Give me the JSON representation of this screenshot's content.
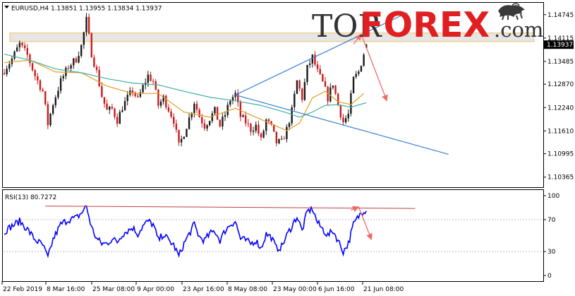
{
  "header": {
    "symbol_line": "EURUSD,H4  1.13851 1.13955 1.13834 1.13937",
    "logo_left": "TOR",
    "logo_main": "FOREX",
    "logo_suffix": ".com"
  },
  "rsi_header": "RSI(13) 80.7272",
  "colors": {
    "bull_candle": "#1a1a1a",
    "bear_candle": "#cc1a1a",
    "ma_fast": "#e0a020",
    "ma_slow": "#40b0a0",
    "trendline": "#3a7fd8",
    "forecast_arrow": "#f06a6a",
    "resistance_zone": "#e6e6e6",
    "resistance_border": "#f0c060",
    "rsi_line": "#0000ff",
    "rsi_resistance": "#c04040",
    "price_badge": "#000000",
    "logo_red": "#e02020",
    "logo_dark": "#333333"
  },
  "chart_data": [
    {
      "type": "candlestick",
      "symbol": "EURUSD",
      "timeframe": "H4",
      "last_bar": {
        "open": 1.13851,
        "high": 1.13955,
        "low": 1.13834,
        "close": 1.13937
      },
      "current_price_label": "1.13937",
      "ylim": [
        1.1015,
        1.1495
      ],
      "y_tick_labels": [
        "1.14745",
        "1.14115",
        "1.13485",
        "1.12870",
        "1.12240",
        "1.11610",
        "1.10995",
        "1.10365"
      ],
      "y_tick_values": [
        1.14745,
        1.14115,
        1.13485,
        1.1287,
        1.1224,
        1.1161,
        1.10995,
        1.10365
      ],
      "x_tick_labels": [
        "22 Feb 2019",
        "8 Mar 16:00",
        "25 Mar 08:00",
        "9 Apr 00:00",
        "23 Apr 16:00",
        "8 May 08:00",
        "23 May 00:00",
        "6 Jun 16:00",
        "21 Jun 08:00"
      ],
      "close_path": [
        [
          0,
          1.1325
        ],
        [
          3,
          1.1355
        ],
        [
          6,
          1.1395
        ],
        [
          9,
          1.1365
        ],
        [
          12,
          1.131
        ],
        [
          15,
          1.1268
        ],
        [
          17,
          1.118
        ],
        [
          19,
          1.1235
        ],
        [
          22,
          1.1295
        ],
        [
          25,
          1.1335
        ],
        [
          28,
          1.1355
        ],
        [
          30,
          1.139
        ],
        [
          32,
          1.146
        ],
        [
          34,
          1.137
        ],
        [
          36,
          1.132
        ],
        [
          38,
          1.1255
        ],
        [
          40,
          1.1215
        ],
        [
          42,
          1.122
        ],
        [
          44,
          1.119
        ],
        [
          46,
          1.1225
        ],
        [
          48,
          1.125
        ],
        [
          50,
          1.127
        ],
        [
          52,
          1.1245
        ],
        [
          54,
          1.128
        ],
        [
          56,
          1.131
        ],
        [
          58,
          1.1295
        ],
        [
          60,
          1.123
        ],
        [
          62,
          1.125
        ],
        [
          64,
          1.122
        ],
        [
          66,
          1.119
        ],
        [
          68,
          1.112
        ],
        [
          70,
          1.1155
        ],
        [
          72,
          1.1195
        ],
        [
          74,
          1.124
        ],
        [
          76,
          1.12
        ],
        [
          78,
          1.1175
        ],
        [
          80,
          1.1195
        ],
        [
          82,
          1.1215
        ],
        [
          84,
          1.1175
        ],
        [
          86,
          1.1205
        ],
        [
          88,
          1.1245
        ],
        [
          90,
          1.126
        ],
        [
          92,
          1.12
        ],
        [
          94,
          1.1185
        ],
        [
          96,
          1.1165
        ],
        [
          98,
          1.1175
        ],
        [
          100,
          1.1135
        ],
        [
          102,
          1.119
        ],
        [
          104,
          1.117
        ],
        [
          106,
          1.113
        ],
        [
          108,
          1.113
        ],
        [
          110,
          1.1165
        ],
        [
          112,
          1.1215
        ],
        [
          114,
          1.1295
        ],
        [
          116,
          1.125
        ],
        [
          118,
          1.133
        ],
        [
          120,
          1.136
        ],
        [
          122,
          1.132
        ],
        [
          124,
          1.129
        ],
        [
          126,
          1.125
        ],
        [
          128,
          1.129
        ],
        [
          130,
          1.123
        ],
        [
          132,
          1.1185
        ],
        [
          134,
          1.1205
        ],
        [
          136,
          1.13
        ],
        [
          138,
          1.132
        ],
        [
          140,
          1.137
        ],
        [
          141,
          1.13937
        ]
      ],
      "moving_averages": [
        {
          "name": "MA fast",
          "color": "#e0a020",
          "values": [
            [
              0,
              1.1345
            ],
            [
              10,
              1.1352
            ],
            [
              20,
              1.132
            ],
            [
              30,
              1.1318
            ],
            [
              40,
              1.1282
            ],
            [
              50,
              1.1262
            ],
            [
              60,
              1.1262
            ],
            [
              70,
              1.1212
            ],
            [
              80,
              1.1198
            ],
            [
              90,
              1.1222
            ],
            [
              100,
              1.1192
            ],
            [
              110,
              1.1162
            ],
            [
              115,
              1.1182
            ],
            [
              120,
              1.125
            ],
            [
              125,
              1.1268
            ],
            [
              130,
              1.124
            ],
            [
              135,
              1.1232
            ],
            [
              140,
              1.1262
            ]
          ]
        },
        {
          "name": "MA slow",
          "color": "#40b0a0",
          "values": [
            [
              0,
              1.1368
            ],
            [
              10,
              1.1352
            ],
            [
              20,
              1.1328
            ],
            [
              30,
              1.1318
            ],
            [
              40,
              1.1302
            ],
            [
              50,
              1.129
            ],
            [
              60,
              1.1285
            ],
            [
              70,
              1.1268
            ],
            [
              80,
              1.1252
            ],
            [
              90,
              1.1242
            ],
            [
              100,
              1.123
            ],
            [
              110,
              1.121
            ],
            [
              115,
              1.1198
            ],
            [
              120,
              1.1212
            ],
            [
              125,
              1.123
            ],
            [
              130,
              1.1232
            ],
            [
              135,
              1.1225
            ],
            [
              141,
              1.1237
            ]
          ]
        }
      ],
      "resistance_zone": [
        1.1402,
        1.1425
      ],
      "trendlines": [
        {
          "name": "upper channel line",
          "from": [
            90,
            1.1258
          ],
          "to": [
            157,
            1.148
          ]
        },
        {
          "name": "lower channel line",
          "from": [
            90,
            1.1258
          ],
          "to": [
            173,
            1.1098
          ]
        }
      ],
      "forecast_arrows": [
        {
          "from": [
            136,
            1.1395
          ],
          "to": [
            139,
            1.1422
          ]
        },
        {
          "from": [
            139,
            1.1422
          ],
          "to": [
            149,
            1.1242
          ]
        }
      ]
    },
    {
      "type": "line",
      "name": "RSI(13)",
      "current_value": 80.7272,
      "ylim": [
        0,
        100
      ],
      "y_tick_labels": [
        "100",
        "70",
        "30",
        "0"
      ],
      "y_tick_values": [
        100,
        70,
        30,
        0
      ],
      "levels": [
        70,
        30
      ],
      "series": [
        {
          "values": [
            [
              0,
              55
            ],
            [
              3,
              62
            ],
            [
              6,
              68
            ],
            [
              9,
              58
            ],
            [
              12,
              45
            ],
            [
              15,
              38
            ],
            [
              17,
              22
            ],
            [
              19,
              45
            ],
            [
              22,
              64
            ],
            [
              25,
              70
            ],
            [
              28,
              72
            ],
            [
              30,
              78
            ],
            [
              32,
              87
            ],
            [
              34,
              60
            ],
            [
              36,
              46
            ],
            [
              38,
              40
            ],
            [
              40,
              40
            ],
            [
              42,
              46
            ],
            [
              44,
              42
            ],
            [
              46,
              52
            ],
            [
              48,
              56
            ],
            [
              50,
              60
            ],
            [
              52,
              52
            ],
            [
              54,
              62
            ],
            [
              56,
              68
            ],
            [
              58,
              64
            ],
            [
              60,
              44
            ],
            [
              62,
              52
            ],
            [
              64,
              44
            ],
            [
              66,
              38
            ],
            [
              68,
              24
            ],
            [
              70,
              40
            ],
            [
              72,
              52
            ],
            [
              74,
              64
            ],
            [
              76,
              48
            ],
            [
              78,
              44
            ],
            [
              80,
              52
            ],
            [
              82,
              56
            ],
            [
              84,
              44
            ],
            [
              86,
              56
            ],
            [
              88,
              64
            ],
            [
              90,
              68
            ],
            [
              92,
              46
            ],
            [
              94,
              44
            ],
            [
              96,
              40
            ],
            [
              98,
              44
            ],
            [
              100,
              34
            ],
            [
              102,
              52
            ],
            [
              104,
              48
            ],
            [
              106,
              34
            ],
            [
              108,
              36
            ],
            [
              110,
              50
            ],
            [
              112,
              62
            ],
            [
              114,
              74
            ],
            [
              116,
              56
            ],
            [
              118,
              80
            ],
            [
              120,
              84
            ],
            [
              122,
              66
            ],
            [
              124,
              58
            ],
            [
              126,
              50
            ],
            [
              128,
              56
            ],
            [
              130,
              44
            ],
            [
              132,
              30
            ],
            [
              134,
              40
            ],
            [
              136,
              64
            ],
            [
              138,
              74
            ],
            [
              140,
              82
            ],
            [
              141,
              80.73
            ]
          ]
        }
      ],
      "resistance_line": {
        "from": [
          16,
          87
        ],
        "to": [
          160,
          84
        ]
      },
      "forecast_arrows": [
        {
          "from": [
            135,
            82
          ],
          "to": [
            138,
            86
          ]
        },
        {
          "from": [
            138,
            86
          ],
          "to": [
            143,
            45
          ]
        }
      ]
    }
  ]
}
